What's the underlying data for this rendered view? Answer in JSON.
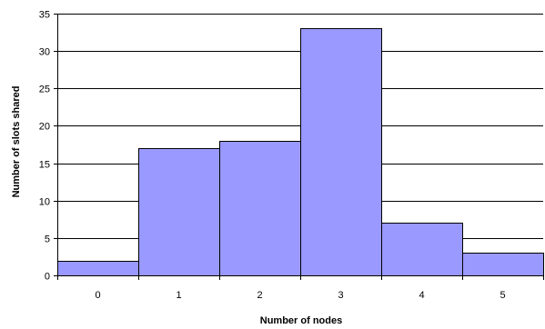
{
  "chart_data": {
    "type": "bar",
    "categories": [
      "0",
      "1",
      "2",
      "3",
      "4",
      "5"
    ],
    "values": [
      2,
      17,
      18,
      33,
      7,
      3
    ],
    "title": "",
    "xlabel": "Number of nodes",
    "ylabel": "Number of slots shared",
    "ylim": [
      0,
      35
    ],
    "yticks": [
      0,
      5,
      10,
      15,
      20,
      25,
      30,
      35
    ],
    "grid": true,
    "legend": "none",
    "bar_color": "#9999ff",
    "bar_edge_color": "#000000"
  }
}
